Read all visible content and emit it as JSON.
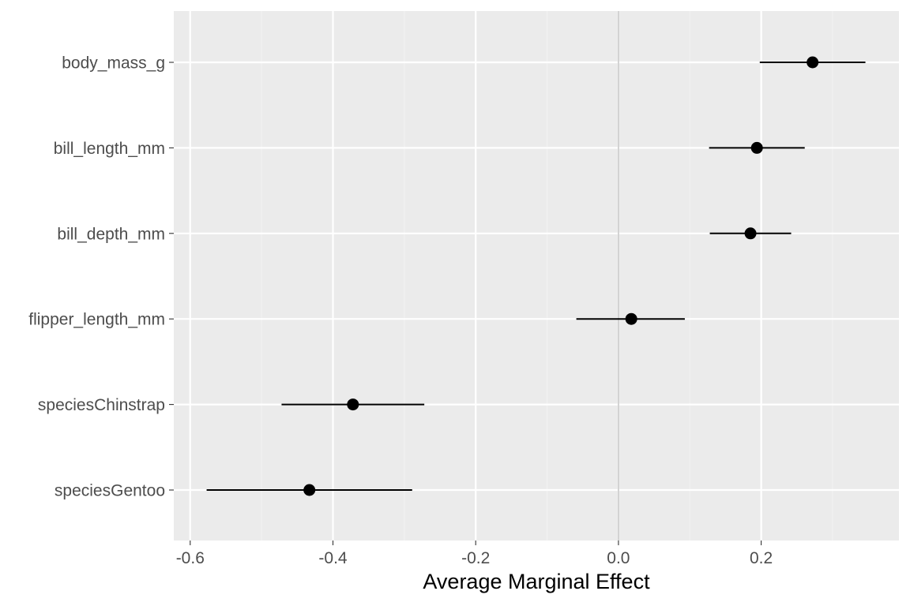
{
  "chart_data": {
    "type": "scatter",
    "subtype": "coefficient-plot-with-intervals",
    "title": "",
    "xlabel": "Average Marginal Effect",
    "ylabel": "",
    "xlim": [
      -0.623,
      0.393
    ],
    "x_ticks": [
      -0.6,
      -0.4,
      -0.2,
      0.0,
      0.2
    ],
    "x_tick_labels": [
      "-0.6",
      "-0.4",
      "-0.2",
      "0.0",
      "0.2"
    ],
    "categories": [
      "body_mass_g",
      "bill_length_mm",
      "bill_depth_mm",
      "flipper_length_mm",
      "speciesChinstrap",
      "speciesGentoo"
    ],
    "estimates": [
      0.272,
      0.194,
      0.185,
      0.018,
      -0.372,
      -0.433
    ],
    "conf_low": [
      0.198,
      0.127,
      0.128,
      -0.059,
      -0.472,
      -0.577
    ],
    "conf_high": [
      0.346,
      0.261,
      0.242,
      0.093,
      -0.272,
      -0.289
    ],
    "reference_line_x": 0,
    "grid": true,
    "legend": "none",
    "colors": {
      "panel_background": "#ebebeb",
      "grid_major": "#ffffff",
      "grid_minor": "#f2f2f2",
      "reference_line": "#c8c8c8",
      "point": "#000000",
      "interval": "#000000",
      "tick_text": "#4d4d4d",
      "title_text": "#000000"
    }
  }
}
